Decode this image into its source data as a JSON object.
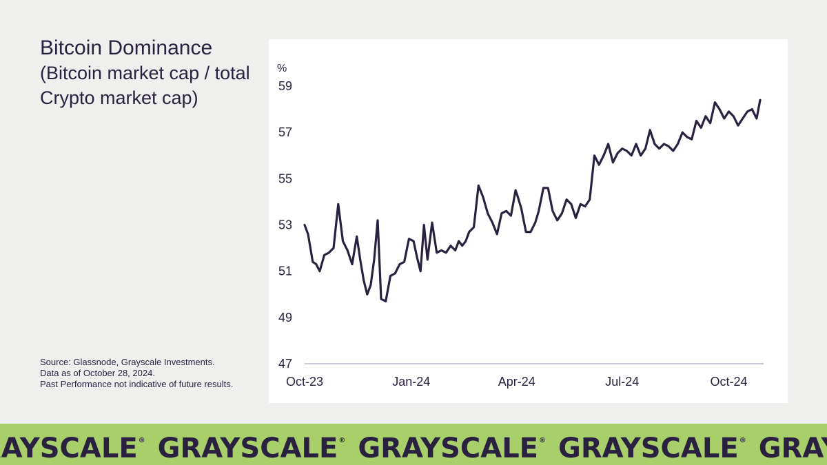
{
  "slide": {
    "title": "Bitcoin Dominance",
    "subtitle": "(Bitcoin market cap / total Crypto market cap)",
    "source_lines": [
      "Source: Glassnode, Grayscale Investments.",
      "Data as of October 28, 2024.",
      "Past Performance not indicative of future results."
    ],
    "brand": "GRAYSCALE",
    "brand_mark": "®"
  },
  "colors": {
    "background": "#efefee",
    "panel": "#ffffff",
    "line": "#2a2140",
    "axis": "#b9b3dc",
    "banner": "#a9cf6b",
    "text": "#2a2140"
  },
  "chart_data": {
    "type": "line",
    "title": "Bitcoin Dominance",
    "subtitle": "(Bitcoin market cap / total Crypto market cap)",
    "ylabel": "%",
    "xlabel": "",
    "ylim": [
      47,
      59
    ],
    "yticks": [
      "47",
      "49",
      "51",
      "53",
      "55",
      "57",
      "59"
    ],
    "xlim": [
      "2023-10-01",
      "2024-10-31"
    ],
    "xticks": [
      {
        "date": "2023-10-01",
        "label": "Oct-23"
      },
      {
        "date": "2024-01-01",
        "label": "Jan-24"
      },
      {
        "date": "2024-04-01",
        "label": "Apr-24"
      },
      {
        "date": "2024-07-01",
        "label": "Jul-24"
      },
      {
        "date": "2024-10-01",
        "label": "Oct-24"
      }
    ],
    "grid": false,
    "legend": "none",
    "series": [
      {
        "x": [
          "2023-10-01",
          "2023-10-04",
          "2023-10-08",
          "2023-10-11",
          "2023-10-14",
          "2023-10-18",
          "2023-10-22",
          "2023-10-26",
          "2023-10-30",
          "2023-11-03",
          "2023-11-07",
          "2023-11-11",
          "2023-11-15",
          "2023-11-18",
          "2023-11-21",
          "2023-11-24",
          "2023-11-27",
          "2023-11-30",
          "2023-12-03",
          "2023-12-06",
          "2023-12-10",
          "2023-12-14",
          "2023-12-18",
          "2023-12-22",
          "2023-12-26",
          "2023-12-30",
          "2024-01-03",
          "2024-01-06",
          "2024-01-09",
          "2024-01-12",
          "2024-01-15",
          "2024-01-19",
          "2024-01-23",
          "2024-01-27",
          "2024-01-31",
          "2024-02-04",
          "2024-02-08",
          "2024-02-11",
          "2024-02-14",
          "2024-02-17",
          "2024-02-20",
          "2024-02-24",
          "2024-02-28",
          "2024-03-03",
          "2024-03-07",
          "2024-03-11",
          "2024-03-15",
          "2024-03-19",
          "2024-03-23",
          "2024-03-27",
          "2024-03-31",
          "2024-04-02",
          "2024-04-05",
          "2024-04-09",
          "2024-04-13",
          "2024-04-17",
          "2024-04-20",
          "2024-04-24",
          "2024-04-28",
          "2024-05-02",
          "2024-05-06",
          "2024-05-10",
          "2024-05-14",
          "2024-05-18",
          "2024-05-22",
          "2024-05-26",
          "2024-05-30",
          "2024-06-03",
          "2024-06-07",
          "2024-06-11",
          "2024-06-15",
          "2024-06-19",
          "2024-06-23",
          "2024-06-27",
          "2024-07-01",
          "2024-07-05",
          "2024-07-09",
          "2024-07-13",
          "2024-07-17",
          "2024-07-21",
          "2024-07-25",
          "2024-07-29",
          "2024-08-02",
          "2024-08-06",
          "2024-08-10",
          "2024-08-14",
          "2024-08-18",
          "2024-08-22",
          "2024-08-26",
          "2024-08-30",
          "2024-09-03",
          "2024-09-07",
          "2024-09-11",
          "2024-09-15",
          "2024-09-19",
          "2024-09-23",
          "2024-09-27",
          "2024-10-01",
          "2024-10-05",
          "2024-10-09",
          "2024-10-13",
          "2024-10-17",
          "2024-10-21",
          "2024-10-25",
          "2024-10-28"
        ],
        "y": [
          53.0,
          52.6,
          51.4,
          51.3,
          51.0,
          51.7,
          51.8,
          52.0,
          53.9,
          52.3,
          51.9,
          51.3,
          52.5,
          51.5,
          50.6,
          50.0,
          50.4,
          51.5,
          53.2,
          49.8,
          49.7,
          50.8,
          50.9,
          51.3,
          51.4,
          52.4,
          52.3,
          51.6,
          51.0,
          53.0,
          51.5,
          53.1,
          51.8,
          51.9,
          51.8,
          52.1,
          51.9,
          52.3,
          52.1,
          52.3,
          52.7,
          52.9,
          54.7,
          54.2,
          53.5,
          53.1,
          52.6,
          53.5,
          53.6,
          53.4,
          54.5,
          54.2,
          53.7,
          52.7,
          52.7,
          53.1,
          53.6,
          54.6,
          54.6,
          53.6,
          53.2,
          53.5,
          54.1,
          53.9,
          53.3,
          53.9,
          53.8,
          54.1,
          56.0,
          55.6,
          56.0,
          56.5,
          55.7,
          56.1,
          56.3,
          56.2,
          56.0,
          56.5,
          56.0,
          56.3,
          57.1,
          56.5,
          56.3,
          56.5,
          56.4,
          56.2,
          56.5,
          57.0,
          56.8,
          56.7,
          57.5,
          57.2,
          57.7,
          57.4,
          58.3,
          58.0,
          57.6,
          57.9,
          57.7,
          57.3,
          57.6,
          57.9,
          58.0,
          57.6,
          58.4
        ]
      }
    ]
  }
}
